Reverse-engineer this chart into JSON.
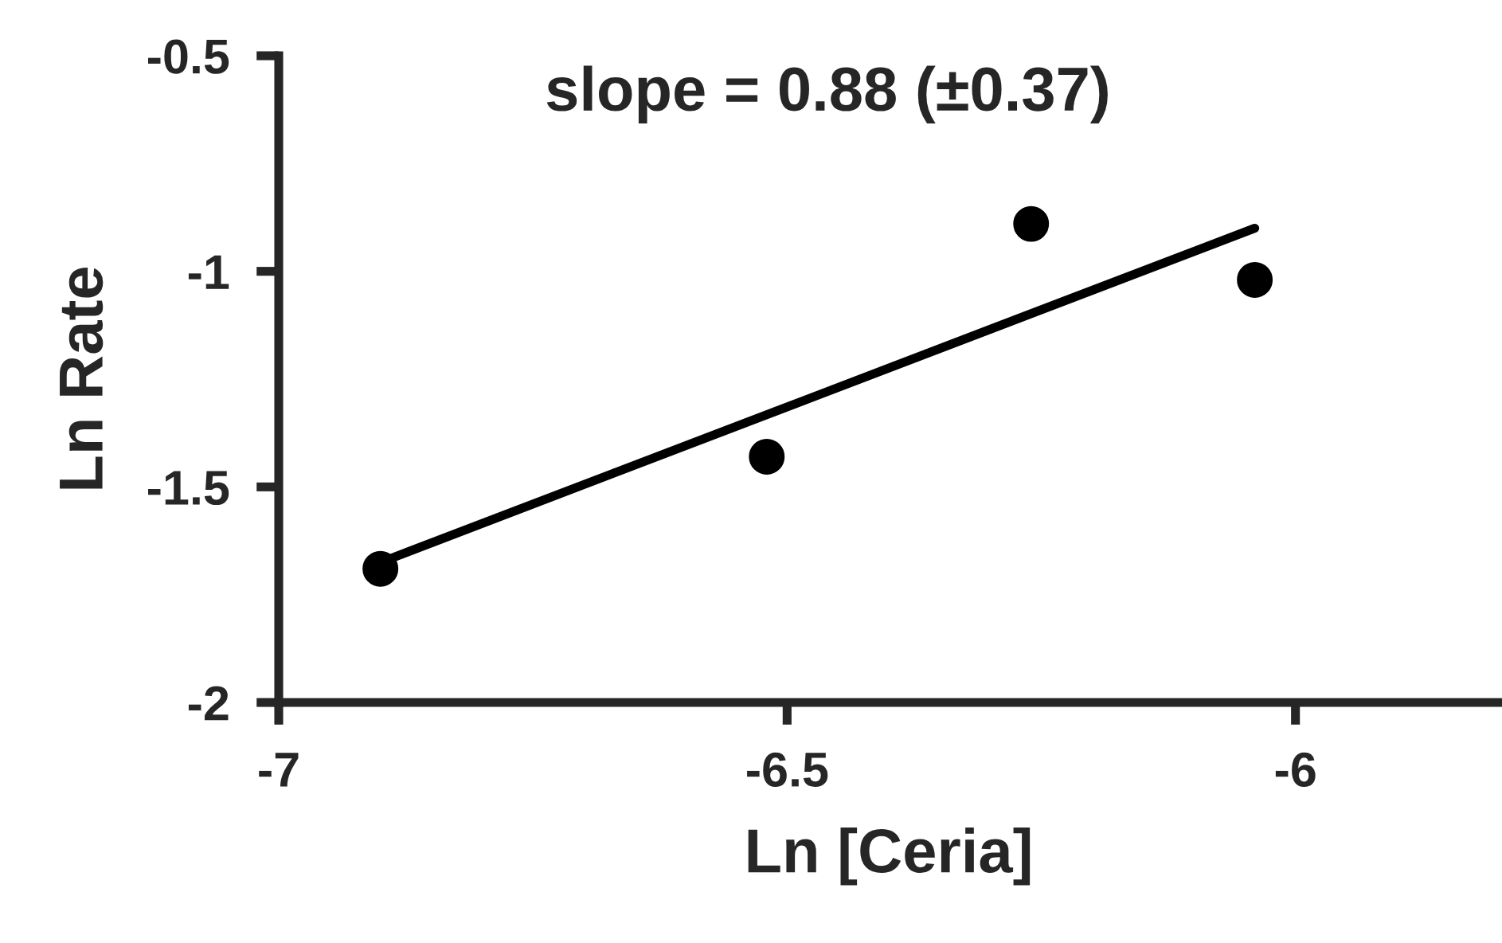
{
  "chart_data": {
    "type": "scatter",
    "xlabel": "Ln [Ceria]",
    "ylabel": "Ln Rate",
    "annotations": [
      "slope = 0.88 (±0.37)"
    ],
    "series": [
      {
        "color": "#000000",
        "marker": "circle",
        "x": [
          -6.9,
          -6.52,
          -6.26,
          -6.04
        ],
        "values": [
          -1.69,
          -1.43,
          -0.89,
          -1.02
        ]
      },
      {
        "type": "line",
        "color": "#000000",
        "x": [
          -6.9,
          -6.04
        ],
        "values": [
          -1.675,
          -0.9
        ]
      }
    ],
    "xlim": [
      -7,
      -5.8
    ],
    "ylim": [
      -2,
      -0.5
    ],
    "xticks": [
      -7,
      -6.5,
      -6
    ],
    "yticks": [
      -2,
      -1.5,
      -1,
      -0.5
    ],
    "grid": false,
    "legend": false
  }
}
